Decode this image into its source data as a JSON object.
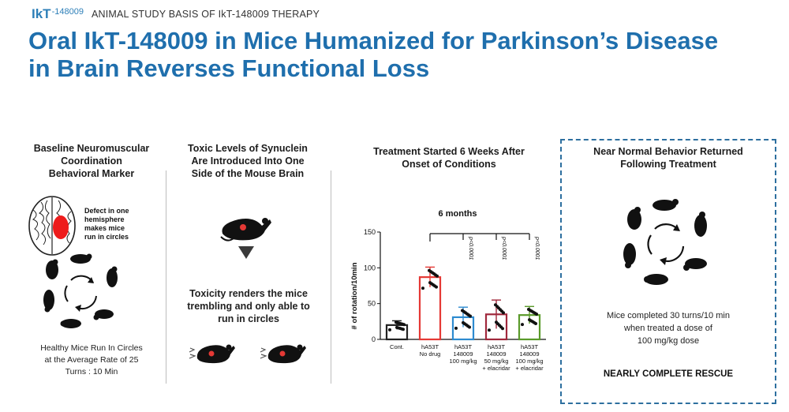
{
  "header": {
    "logo_main": "IkT",
    "logo_sub": "-148009",
    "section_label": "ANIMAL STUDY BASIS OF IkT-148009 THERAPY"
  },
  "title": {
    "line1": "Oral IkT-148009 in Mice Humanized for Parkinson’s Disease",
    "line2": "in Brain Reverses Functional Loss"
  },
  "col1": {
    "title1": "Baseline Neuromuscular",
    "title2": "Coordination",
    "title3": "Behavioral Marker",
    "defect1": "Defect in one",
    "defect2": "hemisphere",
    "defect3": "makes mice",
    "defect4": "run in circles",
    "note1": "Healthy Mice Run In Circles",
    "note2": "at the Average Rate of 25",
    "note3": "Turns : 10 Min"
  },
  "col2": {
    "title1": "Toxic Levels of Synuclein",
    "title2": "Are Introduced Into One",
    "title3": "Side of the Mouse Brain",
    "tox1": "Toxicity renders the mice",
    "tox2": "trembling and only able to",
    "tox3": "run in circles"
  },
  "col3": {
    "title1": "Treatment Started 6 Weeks After",
    "title2": "Onset of Conditions"
  },
  "col4": {
    "title1": "Near Normal Behavior Returned",
    "title2": "Following Treatment",
    "text1": "Mice completed 30 turns/10 min",
    "text2": "when treated a dose of",
    "text3": "100 mg/kg dose",
    "rescue": "NEARLY COMPLETE RESCUE"
  },
  "chart_data": {
    "type": "bar",
    "title": "6 months",
    "ylabel": "# of rotation/10min",
    "ylim": [
      0,
      150
    ],
    "yticks": [
      "0",
      "50",
      "100",
      "150"
    ],
    "categories": [
      [
        "Cont."
      ],
      [
        "hA53T",
        "No drug"
      ],
      [
        "hA53T",
        "148009",
        "100 mg/kg"
      ],
      [
        "hA53T",
        "148009",
        "50 mg/kg",
        "+ elacridar"
      ],
      [
        "hA53T",
        "148009",
        "100 mg/kg",
        "+ elacridar"
      ]
    ],
    "values": [
      20,
      87,
      31,
      35,
      34
    ],
    "errors": [
      6,
      14,
      14,
      20,
      12
    ],
    "colors": [
      "#222222",
      "#e53935",
      "#2e8bd0",
      "#a0283c",
      "#5a9a2a"
    ],
    "pvalues": [
      "p<0.0001",
      "p<0.0001",
      "p<0.0001"
    ]
  }
}
